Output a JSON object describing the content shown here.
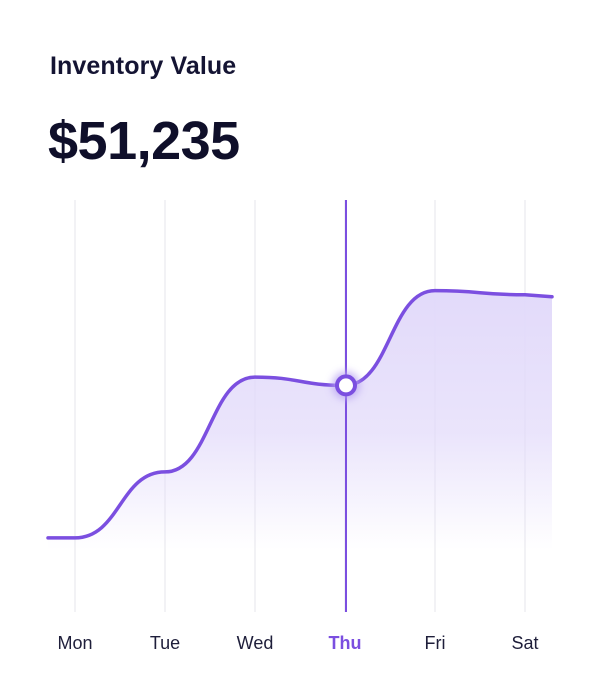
{
  "card": {
    "title": "Inventory Value",
    "value": "$51,235"
  },
  "colors": {
    "line": "#7B4FE0",
    "fill_top": "#E2DAFA",
    "grid": "#EEEEF2",
    "highlight": "#7B4FE0",
    "label": "#1E1E3A",
    "point_halo": "#B9A4F2"
  },
  "chart_data": {
    "type": "area",
    "categories": [
      "Mon",
      "Tue",
      "Wed",
      "Thu",
      "Fri",
      "Sat"
    ],
    "series": [
      {
        "values": [
          18,
          34,
          57,
          55,
          78,
          77
        ]
      }
    ],
    "highlight": {
      "category": "Thu",
      "value": 55
    },
    "ylim": [
      0,
      100
    ],
    "grid": true,
    "xlabel": "",
    "ylabel": ""
  }
}
